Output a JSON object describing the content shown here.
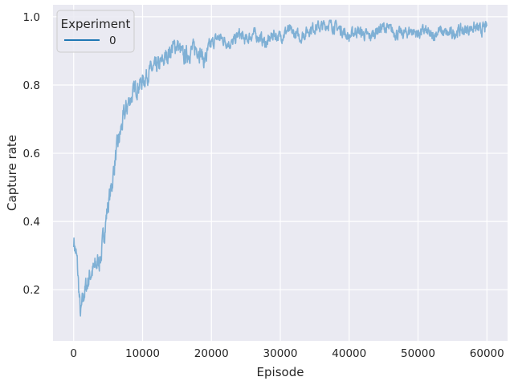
{
  "chart_data": {
    "type": "line",
    "xlabel": "Episode",
    "ylabel": "Capture rate",
    "xlim": [
      -3000,
      63000
    ],
    "ylim": [
      0.05,
      1.035
    ],
    "xticks": [
      0,
      10000,
      20000,
      30000,
      40000,
      50000,
      60000
    ],
    "xtick_labels": [
      "0",
      "10000",
      "20000",
      "30000",
      "40000",
      "50000",
      "60000"
    ],
    "yticks": [
      0.2,
      0.4,
      0.6,
      0.8,
      1.0
    ],
    "ytick_labels": [
      "0.2",
      "0.4",
      "0.6",
      "0.8",
      "1.0"
    ],
    "grid": true,
    "legend": {
      "title": "Experiment",
      "position": "top-left"
    },
    "colors": {
      "background": "#eaeaf2",
      "grid": "#ffffff",
      "legend_line": "#1f77b4",
      "series_line": "#7fb0d5"
    },
    "series": [
      {
        "name": "0",
        "x": [
          0,
          500,
          1000,
          1500,
          2000,
          2500,
          3000,
          3500,
          4000,
          4500,
          5000,
          5500,
          6000,
          6500,
          7000,
          7500,
          8000,
          8500,
          9000,
          9500,
          10000,
          11000,
          12000,
          13000,
          14000,
          15000,
          16000,
          17000,
          18000,
          19000,
          20000,
          21000,
          22000,
          23000,
          24000,
          25000,
          26000,
          27000,
          28000,
          29000,
          30000,
          31000,
          32000,
          33000,
          34000,
          35000,
          36000,
          37000,
          38000,
          39000,
          40000,
          41000,
          42000,
          43000,
          44000,
          45000,
          46000,
          47000,
          48000,
          49000,
          50000,
          51000,
          52000,
          53000,
          54000,
          55000,
          56000,
          57000,
          58000,
          59000,
          60000
        ],
        "y": [
          0.35,
          0.28,
          0.12,
          0.19,
          0.22,
          0.25,
          0.26,
          0.28,
          0.3,
          0.38,
          0.45,
          0.5,
          0.58,
          0.63,
          0.68,
          0.72,
          0.75,
          0.77,
          0.79,
          0.8,
          0.81,
          0.84,
          0.85,
          0.87,
          0.9,
          0.92,
          0.88,
          0.9,
          0.91,
          0.87,
          0.92,
          0.94,
          0.93,
          0.92,
          0.95,
          0.93,
          0.95,
          0.94,
          0.92,
          0.95,
          0.94,
          0.96,
          0.95,
          0.94,
          0.96,
          0.97,
          0.97,
          0.98,
          0.97,
          0.96,
          0.94,
          0.96,
          0.95,
          0.94,
          0.96,
          0.97,
          0.96,
          0.95,
          0.95,
          0.96,
          0.95,
          0.96,
          0.94,
          0.96,
          0.95,
          0.95,
          0.96,
          0.96,
          0.97,
          0.96,
          0.97
        ]
      }
    ]
  }
}
